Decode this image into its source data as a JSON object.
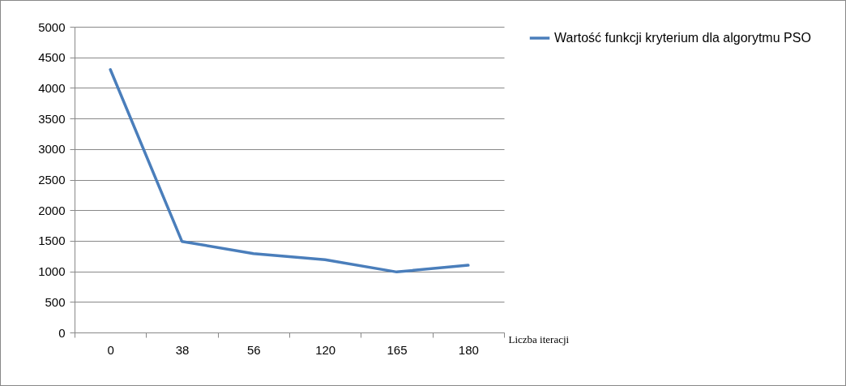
{
  "chart_data": {
    "type": "line",
    "xlabel": "Liczba iteracji",
    "categories": [
      "0",
      "38",
      "56",
      "120",
      "165",
      "180"
    ],
    "series": [
      {
        "name": "Wartość funkcji kryterium dla algorytmu PSO",
        "color": "#4a7ebb",
        "values": [
          4300,
          1490,
          1290,
          1190,
          990,
          1100
        ]
      }
    ],
    "ylim": [
      0,
      5000
    ],
    "yticks": [
      0,
      500,
      1000,
      1500,
      2000,
      2500,
      3000,
      3500,
      4000,
      4500,
      5000
    ],
    "grid": "y",
    "legend": "right",
    "marker": "none",
    "line_style": "solid"
  }
}
